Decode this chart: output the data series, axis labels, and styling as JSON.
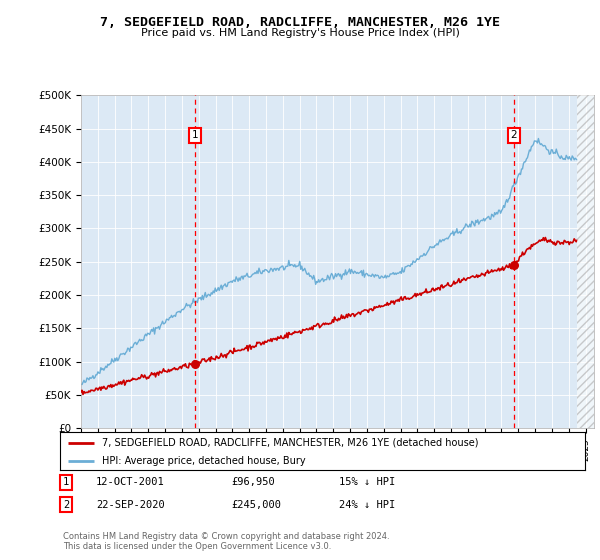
{
  "title": "7, SEDGEFIELD ROAD, RADCLIFFE, MANCHESTER, M26 1YE",
  "subtitle": "Price paid vs. HM Land Registry's House Price Index (HPI)",
  "ylim": [
    0,
    500000
  ],
  "yticks": [
    0,
    50000,
    100000,
    150000,
    200000,
    250000,
    300000,
    350000,
    400000,
    450000,
    500000
  ],
  "ytick_labels": [
    "£0",
    "£50K",
    "£100K",
    "£150K",
    "£200K",
    "£250K",
    "£300K",
    "£350K",
    "£400K",
    "£450K",
    "£500K"
  ],
  "background_color": "#dce9f5",
  "fig_bg_color": "#ffffff",
  "hpi_color": "#6baed6",
  "price_color": "#cc0000",
  "marker1_date_x": 2001.78,
  "marker1_price": 96950,
  "marker2_date_x": 2020.72,
  "marker2_price": 245000,
  "legend_line1": "7, SEDGEFIELD ROAD, RADCLIFFE, MANCHESTER, M26 1YE (detached house)",
  "legend_line2": "HPI: Average price, detached house, Bury",
  "footnote": "Contains HM Land Registry data © Crown copyright and database right 2024.\nThis data is licensed under the Open Government Licence v3.0.",
  "xmin": 1995,
  "xmax": 2025.5,
  "hatch_start": 2024.5
}
